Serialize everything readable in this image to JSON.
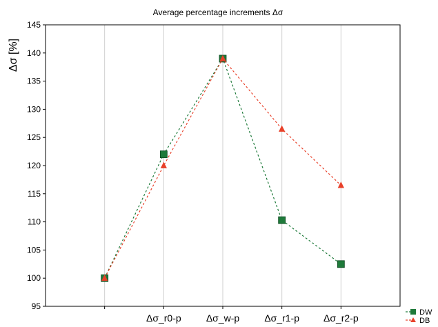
{
  "chart_data": {
    "type": "line",
    "title": "Average percentage increments Δσ",
    "xlabel": "",
    "ylabel": "Δσ [%]",
    "categories": [
      "",
      "Δσ_r0-p",
      "Δσ_w-p",
      "Δσ_r1-p",
      "Δσ_r2-p"
    ],
    "ylim": [
      95,
      145
    ],
    "yticks": [
      95,
      100,
      105,
      110,
      115,
      120,
      125,
      130,
      135,
      140,
      145
    ],
    "grid": "vertical",
    "legend_position": "bottom-right",
    "series": [
      {
        "name": "DW",
        "values": [
          100,
          122,
          139,
          110.3,
          102.5
        ],
        "color": "#1e7a3a",
        "marker": "square",
        "line": "dashed"
      },
      {
        "name": "DB",
        "values": [
          100,
          120,
          139,
          126.5,
          116.5
        ],
        "color": "#e8412a",
        "marker": "triangle",
        "line": "dashed"
      }
    ]
  }
}
